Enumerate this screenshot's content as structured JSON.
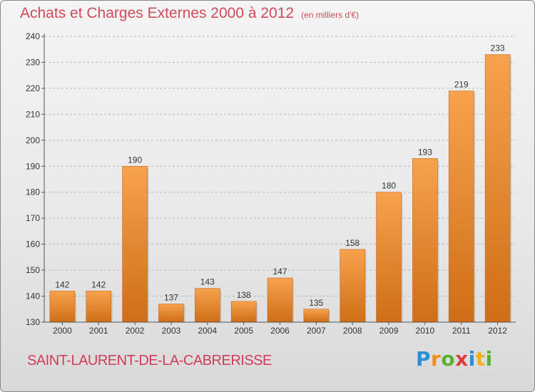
{
  "header": {
    "title": "Achats et Charges Externes 2000 à 2012",
    "unit": "(en milliers d'€)"
  },
  "footer": {
    "place": "SAINT-LAURENT-DE-LA-CABRERISSE",
    "logo_letters": [
      {
        "ch": "P",
        "color": "#2b8fd6"
      },
      {
        "ch": "r",
        "color": "#f08a1c"
      },
      {
        "ch": "o",
        "color": "#58b030"
      },
      {
        "ch": "x",
        "color": "#e03b3b"
      },
      {
        "ch": "i",
        "color": "#2b8fd6"
      },
      {
        "ch": "t",
        "color": "#f3b21c"
      },
      {
        "ch": "i",
        "color": "#58b030"
      }
    ]
  },
  "chart_data": {
    "type": "bar",
    "title": "Achats et Charges Externes 2000 à 2012",
    "subtitle": "(en milliers d'€)",
    "categories": [
      "2000",
      "2001",
      "2002",
      "2003",
      "2004",
      "2005",
      "2006",
      "2007",
      "2008",
      "2009",
      "2010",
      "2011",
      "2012"
    ],
    "values": [
      142,
      142,
      190,
      137,
      143,
      138,
      147,
      135,
      158,
      180,
      193,
      219,
      233
    ],
    "xlabel": "",
    "ylabel": "",
    "ylim": [
      130,
      240
    ],
    "yticks": [
      130,
      140,
      150,
      160,
      170,
      180,
      190,
      200,
      210,
      220,
      230,
      240
    ],
    "grid": "horizontal dashed",
    "bar_color_top": "#f7a24e",
    "bar_color_bottom": "#cf6e16"
  }
}
